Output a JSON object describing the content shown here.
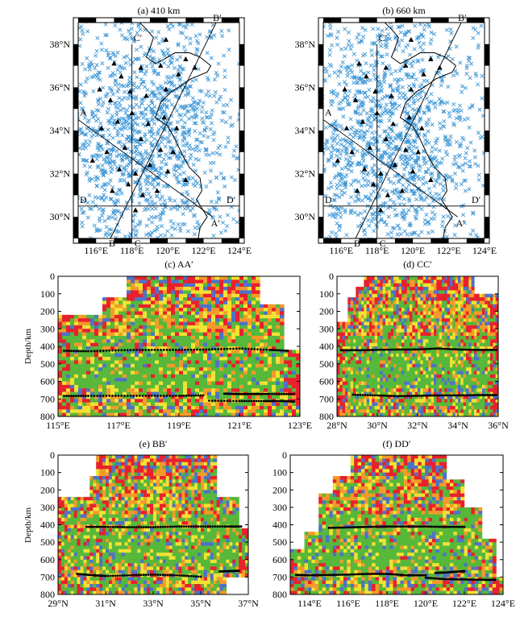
{
  "chart_data": [
    {
      "id": "a",
      "type": "map",
      "title": "(a) 410 km",
      "x_ticks": [
        "116°E",
        "118°E",
        "120°E",
        "122°E",
        "124°E"
      ],
      "y_ticks": [
        "30°N",
        "32°N",
        "34°N",
        "36°N",
        "38°N"
      ],
      "xlim": [
        115,
        124
      ],
      "ylim": [
        29,
        39
      ],
      "profiles": [
        {
          "name": "AA′",
          "start_label": "A",
          "end_label": "A′",
          "start": [
            115,
            34.5
          ],
          "end": [
            122.5,
            30
          ]
        },
        {
          "name": "BB′",
          "start_label": "B",
          "end_label": "B′",
          "start": [
            116.8,
            29
          ],
          "end": [
            122.7,
            39
          ]
        },
        {
          "name": "CC′",
          "start_label": "C",
          "end_label": "C′",
          "start": [
            118,
            29
          ],
          "end": [
            118,
            38
          ]
        },
        {
          "name": "DD′",
          "start_label": "D",
          "end_label": "D′",
          "start": [
            115,
            30.5
          ],
          "end": [
            124,
            30.5
          ]
        }
      ],
      "legend": "none"
    },
    {
      "id": "b",
      "type": "map",
      "title": "(b) 660 km",
      "x_ticks": [
        "116°E",
        "118°E",
        "120°E",
        "122°E",
        "124°E"
      ],
      "y_ticks": [
        "30°N",
        "32°N",
        "34°N",
        "36°N",
        "38°N"
      ],
      "xlim": [
        115,
        124
      ],
      "ylim": [
        29,
        39
      ],
      "profiles": [
        {
          "name": "AA′",
          "start_label": "A",
          "end_label": "A′",
          "start": [
            115,
            34.5
          ],
          "end": [
            122.5,
            30
          ]
        },
        {
          "name": "BB′",
          "start_label": "B",
          "end_label": "B′",
          "start": [
            116.8,
            29
          ],
          "end": [
            122.7,
            39
          ]
        },
        {
          "name": "CC′",
          "start_label": "C",
          "end_label": "C′",
          "start": [
            118,
            29
          ],
          "end": [
            118,
            38
          ]
        },
        {
          "name": "DD′",
          "start_label": "D",
          "end_label": "D′",
          "start": [
            115,
            30.5
          ],
          "end": [
            124,
            30.5
          ]
        }
      ],
      "legend": "none"
    },
    {
      "id": "c",
      "type": "heatmap",
      "title": "(c) AA′",
      "ylabel": "Depth/km",
      "x_ticks": [
        "115°E",
        "117°E",
        "119°E",
        "121°E",
        "123°E"
      ],
      "y_ticks": [
        "0",
        "100",
        "200",
        "300",
        "400",
        "500",
        "600",
        "700",
        "800"
      ],
      "xlim": [
        115,
        123
      ],
      "ylim": [
        0,
        800
      ],
      "picks": [
        {
          "name": "410",
          "x": [
            115.2,
            116.0,
            117.0,
            118.0,
            119.0,
            120.0,
            121.0,
            122.0,
            122.6
          ],
          "y": [
            425,
            428,
            422,
            420,
            420,
            418,
            412,
            420,
            425
          ]
        },
        {
          "name": "660",
          "x": [
            115.2,
            116.0,
            117.0,
            118.0,
            119.0,
            119.8
          ],
          "y": [
            683,
            683,
            682,
            682,
            682,
            680
          ]
        },
        {
          "name": "660-a",
          "x": [
            120.5,
            121.0,
            121.5,
            122.0,
            122.8
          ],
          "y": [
            670,
            672,
            672,
            672,
            672
          ]
        },
        {
          "name": "660-b",
          "x": [
            120.0,
            121.0,
            121.8,
            122.4,
            122.8
          ],
          "y": [
            710,
            712,
            712,
            712,
            715
          ]
        }
      ]
    },
    {
      "id": "d",
      "type": "heatmap",
      "title": "(d) CC′",
      "ylabel": "",
      "x_ticks": [
        "28°N",
        "30°N",
        "32°N",
        "34°N",
        "36°N"
      ],
      "y_ticks": [
        "0",
        "100",
        "200",
        "300",
        "400",
        "500",
        "600",
        "700",
        "800"
      ],
      "xlim": [
        28,
        36
      ],
      "ylim": [
        0,
        800
      ],
      "picks": [
        {
          "name": "410",
          "x": [
            28.2,
            29.0,
            30.0,
            31.0,
            32.0,
            33.0,
            34.0,
            35.0,
            35.9
          ],
          "y": [
            422,
            422,
            420,
            418,
            418,
            412,
            418,
            420,
            420
          ]
        },
        {
          "name": "660",
          "x": [
            28.8,
            30.0,
            31.0,
            32.0,
            33.0,
            34.0,
            35.0,
            35.9
          ],
          "y": [
            676,
            680,
            684,
            682,
            680,
            680,
            678,
            678
          ]
        }
      ]
    },
    {
      "id": "e",
      "type": "heatmap",
      "title": "(e) BB′",
      "ylabel": "Depth/km",
      "x_ticks": [
        "29°N",
        "31°N",
        "33°N",
        "35°N",
        "37°N"
      ],
      "y_ticks": [
        "0",
        "100",
        "200",
        "300",
        "400",
        "500",
        "600",
        "700",
        "800"
      ],
      "xlim": [
        29,
        37
      ],
      "ylim": [
        0,
        800
      ],
      "picks": [
        {
          "name": "410",
          "x": [
            30.2,
            31.0,
            32.0,
            33.0,
            34.0,
            35.0,
            36.0,
            36.7
          ],
          "y": [
            412,
            412,
            414,
            414,
            410,
            410,
            410,
            410
          ]
        },
        {
          "name": "660",
          "x": [
            29.8,
            30.5,
            31.0,
            32.0,
            33.0,
            34.0,
            35.0
          ],
          "y": [
            682,
            690,
            694,
            690,
            686,
            690,
            698
          ]
        },
        {
          "name": "660-a",
          "x": [
            35.8,
            36.2,
            36.6
          ],
          "y": [
            668,
            666,
            664
          ]
        }
      ]
    },
    {
      "id": "f",
      "type": "heatmap",
      "title": "(f) DD′",
      "ylabel": "",
      "x_ticks": [
        "114°E",
        "116°E",
        "118°E",
        "120°E",
        "122°E",
        "124°E"
      ],
      "y_ticks": [
        "0",
        "100",
        "200",
        "300",
        "400",
        "500",
        "600",
        "700",
        "800"
      ],
      "xlim": [
        113,
        124
      ],
      "ylim": [
        0,
        800
      ],
      "picks": [
        {
          "name": "410",
          "x": [
            115.0,
            116.0,
            117.0,
            118.0,
            119.0,
            120.0,
            121.0,
            122.0
          ],
          "y": [
            418,
            415,
            412,
            410,
            410,
            410,
            412,
            412
          ]
        },
        {
          "name": "660",
          "x": [
            113.3,
            114.0,
            115.0,
            116.0,
            117.0,
            118.0,
            119.0,
            120.0
          ],
          "y": [
            688,
            690,
            688,
            686,
            682,
            682,
            690,
            690
          ]
        },
        {
          "name": "660-a",
          "x": [
            120.5,
            121.0,
            121.5,
            122.0
          ],
          "y": [
            676,
            674,
            670,
            666
          ]
        },
        {
          "name": "660-b",
          "x": [
            120.0,
            121.0,
            122.0,
            123.0,
            123.6
          ],
          "y": [
            704,
            712,
            714,
            716,
            716
          ]
        }
      ]
    }
  ],
  "colors": {
    "event_marker": "#3e97d6",
    "station_marker": "#000000",
    "pick_dots": "#000000",
    "anomaly_red": "#e8212d",
    "anomaly_orange": "#f49a2a",
    "anomaly_yellow": "#f1e234",
    "anomaly_green": "#57b83b",
    "anomaly_blue": "#4f72c8",
    "coastline": "#000000",
    "profile_line": "#000000"
  }
}
